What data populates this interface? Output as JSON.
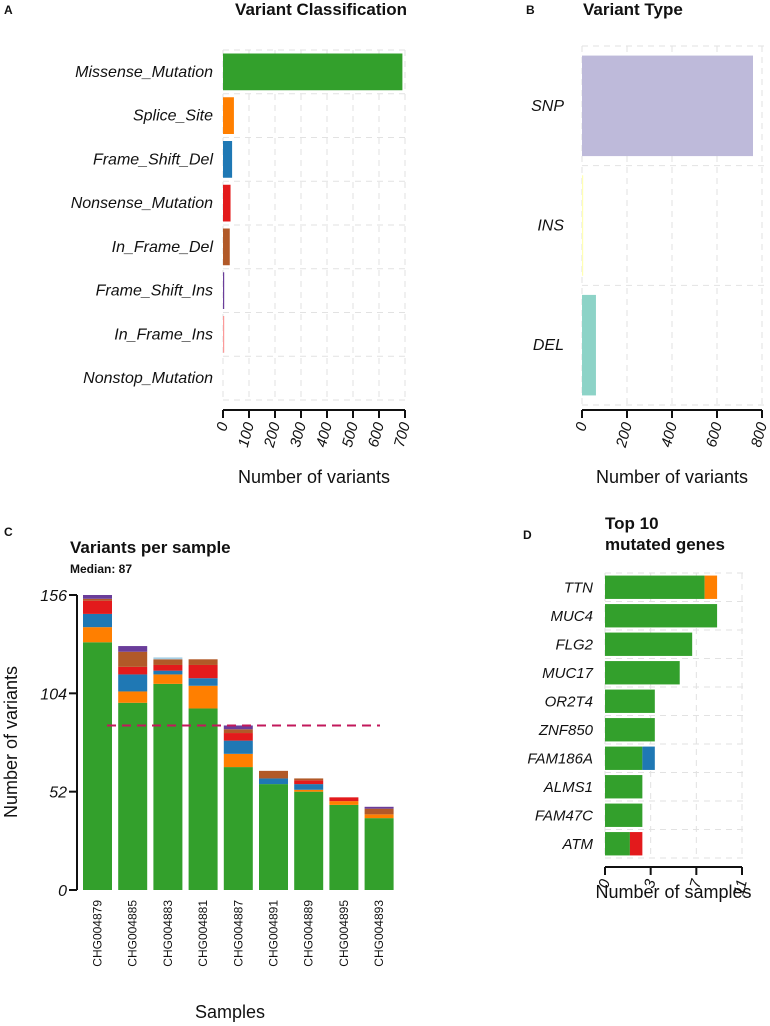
{
  "colors": {
    "Missense_Mutation": "#33a02c",
    "Splice_Site": "#ff7f00",
    "Frame_Shift_Del": "#1f78b4",
    "Nonsense_Mutation": "#e31a1c",
    "In_Frame_Del": "#b15928",
    "Frame_Shift_Ins": "#6a3d9a",
    "In_Frame_Ins": "#fb9a99",
    "Nonstop_Mutation": "#a6cee3",
    "SNP": "#bebada",
    "INS": "#ffffb3",
    "DEL": "#8dd3c7",
    "median_line": "#c2185b"
  },
  "chart_data": [
    {
      "panel": "A",
      "type": "bar",
      "orientation": "horizontal",
      "title": "Variant Classification",
      "categories": [
        "Missense_Mutation",
        "Splice_Site",
        "Frame_Shift_Del",
        "Nonsense_Mutation",
        "In_Frame_Del",
        "Frame_Shift_Ins",
        "In_Frame_Ins",
        "Nonstop_Mutation"
      ],
      "values": [
        690,
        42,
        35,
        29,
        26,
        4,
        3,
        0
      ],
      "xlabel": "Number of variants",
      "ylabel": "",
      "xlim": [
        0,
        700
      ],
      "xticks": [
        "0",
        "100",
        "200",
        "300",
        "400",
        "500",
        "600",
        "700"
      ],
      "grid": true
    },
    {
      "panel": "B",
      "type": "bar",
      "orientation": "horizontal",
      "title": "Variant Type",
      "categories": [
        "SNP",
        "INS",
        "DEL"
      ],
      "values": [
        760,
        3,
        62
      ],
      "xlabel": "Number of variants",
      "ylabel": "",
      "xlim": [
        0,
        800
      ],
      "xticks": [
        "0",
        "200",
        "400",
        "600",
        "800"
      ],
      "grid": true
    },
    {
      "panel": "C",
      "type": "bar",
      "stacked": true,
      "title": "Variants per sample",
      "subtitle": "Median: 87",
      "median": 87,
      "categories": [
        "CHG004879",
        "CHG004885",
        "CHG004883",
        "CHG004881",
        "CHG004887",
        "CHG004891",
        "CHG004889",
        "CHG004895",
        "CHG004893"
      ],
      "series": [
        {
          "name": "Missense_Mutation",
          "values": [
            131,
            99,
            109,
            96,
            65,
            56,
            52,
            45,
            38
          ]
        },
        {
          "name": "Splice_Site",
          "values": [
            8,
            6,
            5,
            12,
            7,
            0,
            1,
            2,
            2
          ]
        },
        {
          "name": "Frame_Shift_Del",
          "values": [
            7,
            9,
            2,
            4,
            7,
            3,
            3,
            0,
            0
          ]
        },
        {
          "name": "Nonsense_Mutation",
          "values": [
            7,
            4,
            3,
            7,
            4,
            0,
            2,
            2,
            0
          ]
        },
        {
          "name": "In_Frame_Del",
          "values": [
            1,
            8,
            3,
            3,
            2,
            4,
            1,
            0,
            3
          ]
        },
        {
          "name": "Frame_Shift_Ins",
          "values": [
            2,
            3,
            0,
            0,
            2,
            0,
            0,
            0,
            1
          ]
        },
        {
          "name": "Nonstop_Mutation",
          "values": [
            0,
            0,
            1,
            0,
            0,
            0,
            0,
            0,
            0
          ]
        }
      ],
      "xlabel": "Samples",
      "ylabel": "Number of variants",
      "ylim": [
        0,
        156
      ],
      "yticks": [
        "0",
        "52",
        "104",
        "156"
      ],
      "grid": false
    },
    {
      "panel": "D",
      "type": "bar",
      "orientation": "horizontal",
      "stacked": true,
      "title": "Top 10\nmutated genes",
      "title_lines": [
        "Top 10",
        "mutated genes"
      ],
      "categories": [
        "TTN",
        "MUC4",
        "FLG2",
        "MUC17",
        "OR2T4",
        "ZNF850",
        "FAM186A",
        "ALMS1",
        "FAM47C",
        "ATM"
      ],
      "series": [
        {
          "name": "Missense_Mutation",
          "values": [
            8,
            9,
            7,
            6,
            4,
            4,
            3,
            3,
            3,
            2
          ]
        },
        {
          "name": "Splice_Site",
          "values": [
            1,
            0,
            0,
            0,
            0,
            0,
            0,
            0,
            0,
            0
          ]
        },
        {
          "name": "Frame_Shift_Del",
          "values": [
            0,
            0,
            0,
            0,
            0,
            0,
            1,
            0,
            0,
            0
          ]
        },
        {
          "name": "Nonsense_Mutation",
          "values": [
            0,
            0,
            0,
            0,
            0,
            0,
            0,
            0,
            0,
            1
          ]
        }
      ],
      "xlabel": "Number of samples",
      "ylabel": "",
      "xlim": [
        0,
        11
      ],
      "xticks": [
        "0",
        "3",
        "7",
        "11"
      ],
      "grid": true
    }
  ],
  "panels": {
    "A": {
      "letter": "A"
    },
    "B": {
      "letter": "B"
    },
    "C": {
      "letter": "C"
    },
    "D": {
      "letter": "D"
    }
  }
}
